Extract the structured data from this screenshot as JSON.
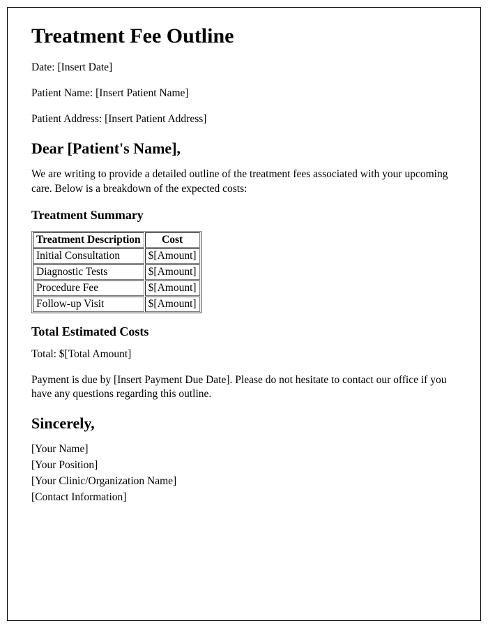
{
  "title": "Treatment Fee Outline",
  "meta": {
    "date_label": "Date: ",
    "date_value": "[Insert Date]",
    "patient_name_label": "Patient Name: ",
    "patient_name_value": "[Insert Patient Name]",
    "patient_address_label": "Patient Address: ",
    "patient_address_value": "[Insert Patient Address]"
  },
  "salutation": "Dear [Patient's Name],",
  "intro": "We are writing to provide a detailed outline of the treatment fees associated with your upcoming care. Below is a breakdown of the expected costs:",
  "summary_heading": "Treatment Summary",
  "table": {
    "columns": [
      "Treatment Description",
      "Cost"
    ],
    "rows": [
      [
        "Initial Consultation",
        "$[Amount]"
      ],
      [
        "Diagnostic Tests",
        "$[Amount]"
      ],
      [
        "Procedure Fee",
        "$[Amount]"
      ],
      [
        "Follow-up Visit",
        "$[Amount]"
      ]
    ]
  },
  "total_heading": "Total Estimated Costs",
  "total_line": "Total: $[Total Amount]",
  "payment_line": "Payment is due by [Insert Payment Due Date]. Please do not hesitate to contact our office if you have any questions regarding this outline.",
  "closing": "Sincerely,",
  "signature": {
    "name": "[Your Name]",
    "position": "[Your Position]",
    "org": "[Your Clinic/Organization Name]",
    "contact": "[Contact Information]"
  }
}
